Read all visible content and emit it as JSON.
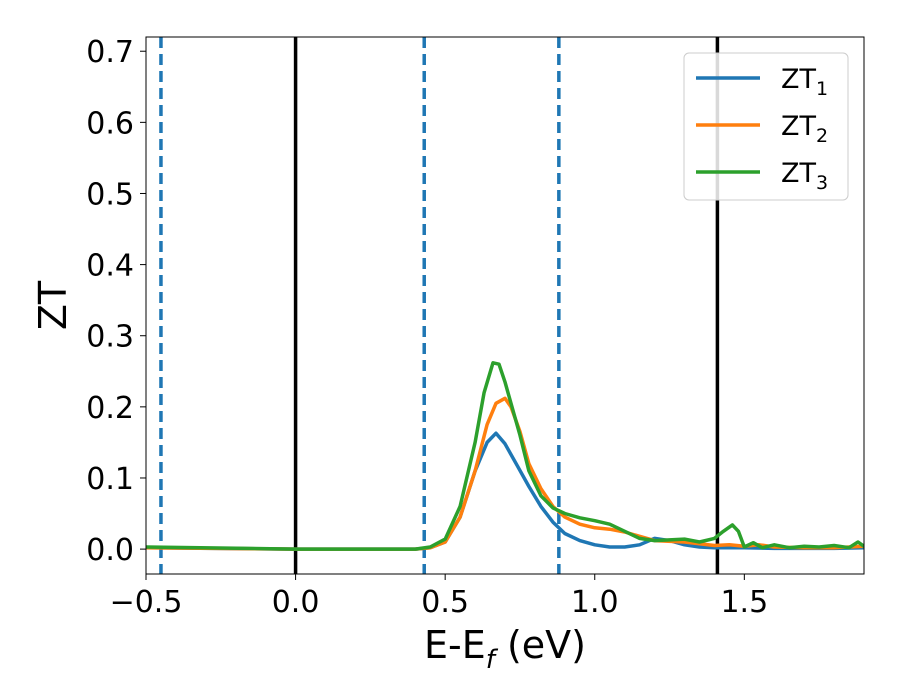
{
  "chart_data": {
    "type": "line",
    "xlabel": "E-E",
    "xlabel_sub": "f",
    "xlabel_unit": " (eV)",
    "ylabel": "ZT",
    "xlim": [
      -0.5,
      1.9
    ],
    "ylim": [
      -0.035,
      0.72
    ],
    "x_ticks": [
      -0.5,
      0.0,
      0.5,
      1.0,
      1.5
    ],
    "x_tick_labels": [
      "−0.5",
      "0.0",
      "0.5",
      "1.0",
      "1.5"
    ],
    "y_ticks": [
      0.0,
      0.1,
      0.2,
      0.3,
      0.4,
      0.5,
      0.6,
      0.7
    ],
    "y_tick_labels": [
      "0.0",
      "0.1",
      "0.2",
      "0.3",
      "0.4",
      "0.5",
      "0.6",
      "0.7"
    ],
    "grid": false,
    "legend_position": "top-right",
    "vlines_solid": [
      0.0,
      1.41
    ],
    "vlines_dashed": [
      -0.45,
      0.43,
      0.88
    ],
    "colors": {
      "solid_line": "#000000",
      "dashed_line": "#1f77b4"
    },
    "series": [
      {
        "name": "ZT",
        "name_sub": "1",
        "color": "#1f77b4",
        "x": [
          -0.5,
          0.0,
          0.4,
          0.45,
          0.5,
          0.55,
          0.6,
          0.64,
          0.67,
          0.7,
          0.74,
          0.78,
          0.82,
          0.86,
          0.9,
          0.95,
          1.0,
          1.05,
          1.1,
          1.15,
          1.2,
          1.25,
          1.3,
          1.35,
          1.4,
          1.5,
          1.6,
          1.7,
          1.8,
          1.9
        ],
        "y": [
          0.002,
          0.0,
          0.0,
          0.002,
          0.01,
          0.045,
          0.11,
          0.15,
          0.163,
          0.148,
          0.118,
          0.088,
          0.06,
          0.038,
          0.022,
          0.012,
          0.006,
          0.003,
          0.003,
          0.006,
          0.015,
          0.012,
          0.006,
          0.003,
          0.002,
          0.002,
          0.001,
          0.001,
          0.001,
          0.002
        ]
      },
      {
        "name": "ZT",
        "name_sub": "2",
        "color": "#ff7f0e",
        "x": [
          -0.5,
          0.0,
          0.4,
          0.45,
          0.5,
          0.55,
          0.6,
          0.64,
          0.67,
          0.7,
          0.72,
          0.75,
          0.78,
          0.82,
          0.86,
          0.9,
          0.95,
          1.0,
          1.05,
          1.1,
          1.15,
          1.2,
          1.3,
          1.4,
          1.45,
          1.5,
          1.55,
          1.6,
          1.7,
          1.8,
          1.9
        ],
        "y": [
          0.002,
          0.0,
          0.0,
          0.002,
          0.01,
          0.045,
          0.11,
          0.175,
          0.205,
          0.212,
          0.2,
          0.165,
          0.12,
          0.085,
          0.06,
          0.045,
          0.035,
          0.03,
          0.028,
          0.024,
          0.018,
          0.012,
          0.01,
          0.005,
          0.006,
          0.004,
          0.006,
          0.003,
          0.002,
          0.002,
          0.004
        ]
      },
      {
        "name": "ZT",
        "name_sub": "3",
        "color": "#2ca02c",
        "x": [
          -0.5,
          0.0,
          0.4,
          0.45,
          0.5,
          0.55,
          0.6,
          0.63,
          0.66,
          0.68,
          0.7,
          0.72,
          0.75,
          0.78,
          0.82,
          0.86,
          0.9,
          0.95,
          1.0,
          1.05,
          1.1,
          1.15,
          1.2,
          1.3,
          1.35,
          1.4,
          1.43,
          1.46,
          1.48,
          1.5,
          1.53,
          1.56,
          1.6,
          1.65,
          1.7,
          1.75,
          1.8,
          1.85,
          1.88,
          1.9
        ],
        "y": [
          0.003,
          0.0,
          0.0,
          0.003,
          0.014,
          0.06,
          0.15,
          0.22,
          0.262,
          0.26,
          0.235,
          0.205,
          0.16,
          0.11,
          0.075,
          0.058,
          0.05,
          0.044,
          0.04,
          0.035,
          0.025,
          0.015,
          0.012,
          0.014,
          0.01,
          0.015,
          0.025,
          0.034,
          0.025,
          0.003,
          0.009,
          0.002,
          0.006,
          0.002,
          0.004,
          0.003,
          0.005,
          0.002,
          0.01,
          0.004
        ]
      }
    ]
  }
}
